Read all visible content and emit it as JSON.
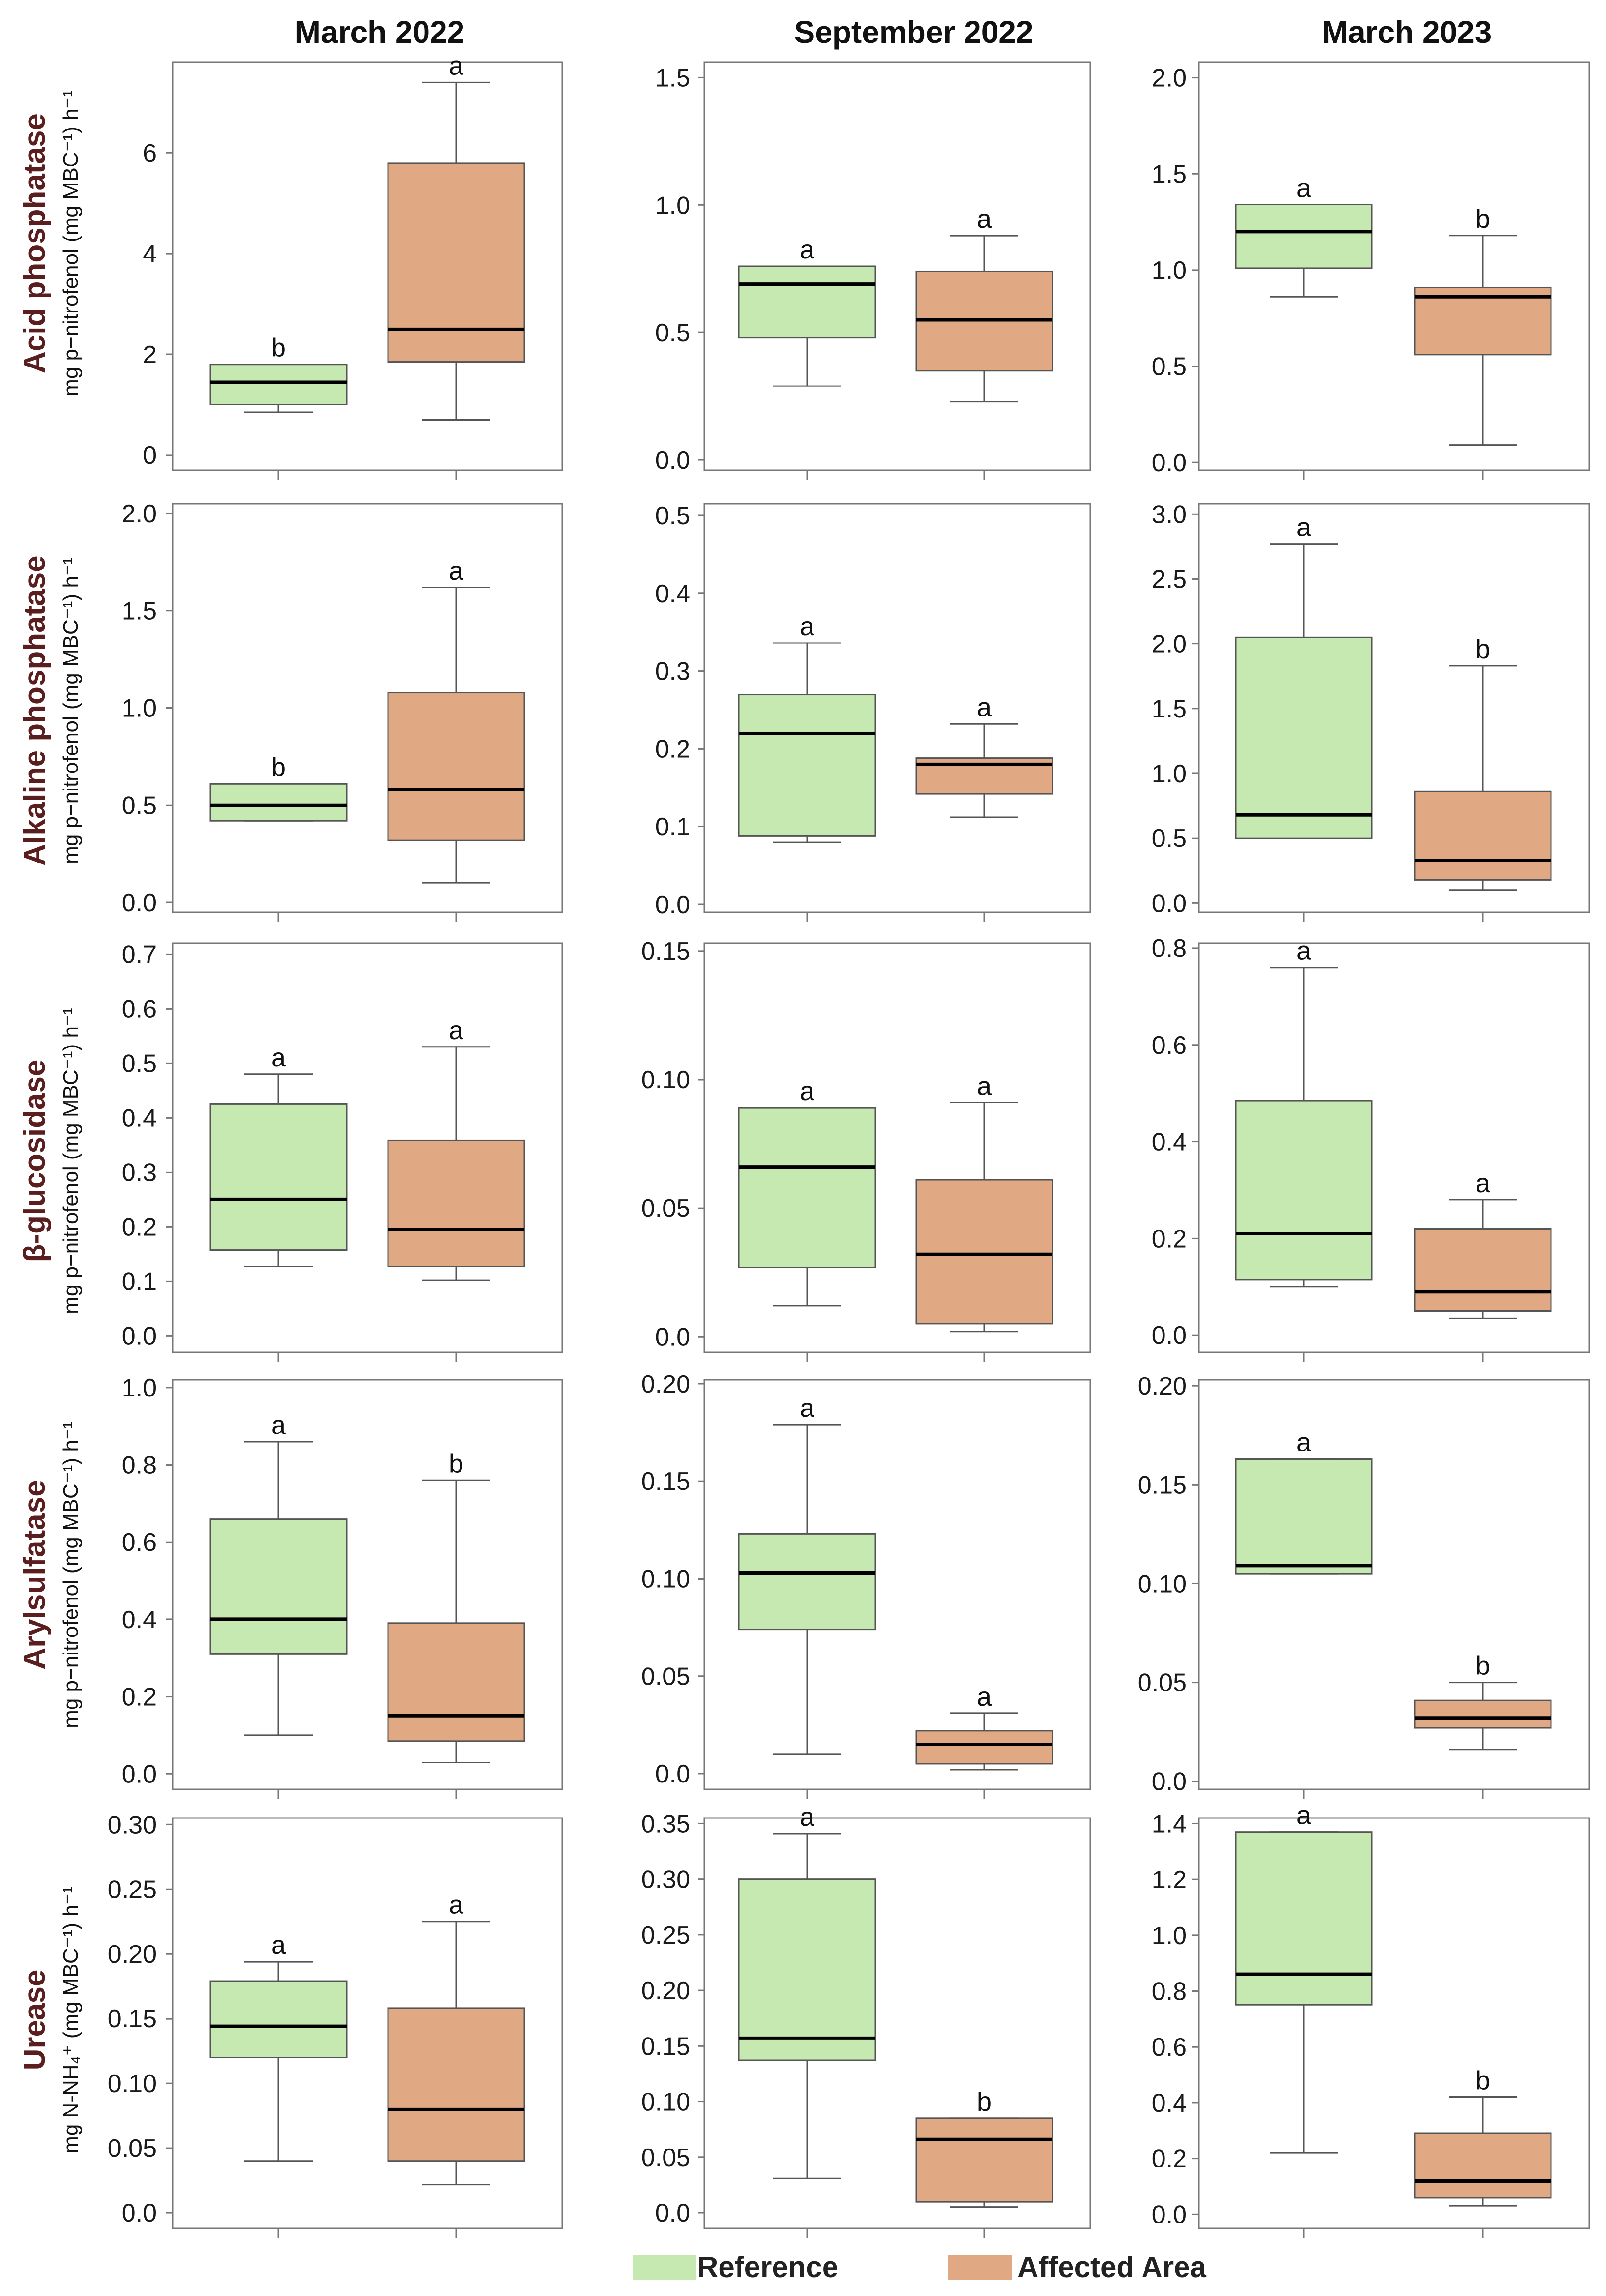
{
  "col_titles": [
    "March 2022",
    "September 2022",
    "March 2023"
  ],
  "rows": [
    {
      "title": "Acid phosphatase",
      "unit": "mg p−nitrofenol (mg MBC⁻¹) h⁻¹"
    },
    {
      "title": "Alkaline phosphatase",
      "unit": "mg p−nitrofenol (mg MBC⁻¹) h⁻¹"
    },
    {
      "title": "β-glucosidase",
      "unit": "mg p−nitrofenol (mg MBC⁻¹) h⁻¹"
    },
    {
      "title": "Arylsulfatase",
      "unit": "mg p−nitrofenol (mg MBC⁻¹) h⁻¹"
    },
    {
      "title": "Urease",
      "unit": "mg N-NH₄⁺ (mg MBC⁻¹) h⁻¹"
    }
  ],
  "legend": [
    {
      "label": "Reference",
      "color": "#c5e9b0"
    },
    {
      "label": "Affected Area",
      "color": "#e0a984"
    }
  ],
  "colors": {
    "reference": "#c5e9b0",
    "affected": "#e0a984",
    "median": "#000000"
  },
  "chart_data": [
    {
      "type": "box",
      "row": "Acid phosphatase",
      "column": "March 2022",
      "ylim": [
        -0.3,
        7.8
      ],
      "yticks": [
        "0",
        "2",
        "4",
        "6"
      ],
      "yticks_values": [
        0,
        2,
        4,
        6
      ],
      "series": [
        {
          "name": "Reference",
          "min": 0.85,
          "q1": 1.0,
          "median": 1.45,
          "q3": 1.8,
          "max": 1.8,
          "letter": "b"
        },
        {
          "name": "Affected Area",
          "min": 0.7,
          "q1": 1.85,
          "median": 2.5,
          "q3": 5.8,
          "max": 7.4,
          "letter": "a"
        }
      ]
    },
    {
      "type": "box",
      "row": "Acid phosphatase",
      "column": "September 2022",
      "ylim": [
        -0.04,
        1.56
      ],
      "yticks": [
        "0.0",
        "0.5",
        "1.0",
        "1.5"
      ],
      "yticks_values": [
        0,
        0.5,
        1.0,
        1.5
      ],
      "series": [
        {
          "name": "Reference",
          "min": 0.29,
          "q1": 0.48,
          "median": 0.69,
          "q3": 0.76,
          "max": 0.76,
          "letter": "a"
        },
        {
          "name": "Affected Area",
          "min": 0.23,
          "q1": 0.35,
          "median": 0.55,
          "q3": 0.74,
          "max": 0.88,
          "letter": "a"
        }
      ]
    },
    {
      "type": "box",
      "row": "Acid phosphatase",
      "column": "March 2023",
      "ylim": [
        -0.04,
        2.08
      ],
      "yticks": [
        "0.0",
        "0.5",
        "1.0",
        "1.5",
        "2.0"
      ],
      "yticks_values": [
        0,
        0.5,
        1.0,
        1.5,
        2.0
      ],
      "series": [
        {
          "name": "Reference",
          "min": 0.86,
          "q1": 1.01,
          "median": 1.2,
          "q3": 1.34,
          "max": 1.34,
          "letter": "a"
        },
        {
          "name": "Affected Area",
          "min": 0.09,
          "q1": 0.56,
          "median": 0.86,
          "q3": 0.91,
          "max": 1.18,
          "letter": "b"
        }
      ]
    },
    {
      "type": "box",
      "row": "Alkaline phosphatase",
      "column": "March 2022",
      "ylim": [
        -0.05,
        2.05
      ],
      "yticks": [
        "0.0",
        "0.5",
        "1.0",
        "1.5",
        "2.0"
      ],
      "yticks_values": [
        0,
        0.5,
        1.0,
        1.5,
        2.0
      ],
      "series": [
        {
          "name": "Reference",
          "min": 0.42,
          "q1": 0.42,
          "median": 0.5,
          "q3": 0.61,
          "max": 0.61,
          "letter": "b"
        },
        {
          "name": "Affected Area",
          "min": 0.1,
          "q1": 0.32,
          "median": 0.58,
          "q3": 1.08,
          "max": 1.62,
          "letter": "a"
        }
      ]
    },
    {
      "type": "box",
      "row": "Alkaline phosphatase",
      "column": "September 2022",
      "ylim": [
        -0.01,
        0.515
      ],
      "yticks": [
        "0.0",
        "0.1",
        "0.2",
        "0.3",
        "0.4",
        "0.5"
      ],
      "yticks_values": [
        0,
        0.1,
        0.2,
        0.3,
        0.4,
        0.5
      ],
      "series": [
        {
          "name": "Reference",
          "min": 0.08,
          "q1": 0.088,
          "median": 0.22,
          "q3": 0.27,
          "max": 0.336,
          "letter": "a"
        },
        {
          "name": "Affected Area",
          "min": 0.112,
          "q1": 0.142,
          "median": 0.18,
          "q3": 0.188,
          "max": 0.232,
          "letter": "a"
        }
      ]
    },
    {
      "type": "box",
      "row": "Alkaline phosphatase",
      "column": "March 2023",
      "ylim": [
        -0.07,
        3.08
      ],
      "yticks": [
        "0.0",
        "0.5",
        "1.0",
        "1.5",
        "2.0",
        "2.5",
        "3.0"
      ],
      "yticks_values": [
        0,
        0.5,
        1.0,
        1.5,
        2.0,
        2.5,
        3.0
      ],
      "series": [
        {
          "name": "Reference",
          "min": 0.5,
          "q1": 0.5,
          "median": 0.68,
          "q3": 2.05,
          "max": 2.77,
          "letter": "a"
        },
        {
          "name": "Affected Area",
          "min": 0.1,
          "q1": 0.18,
          "median": 0.33,
          "q3": 0.86,
          "max": 1.83,
          "letter": "b"
        }
      ]
    },
    {
      "type": "box",
      "row": "β-glucosidase",
      "column": "March 2022",
      "ylim": [
        -0.03,
        0.72
      ],
      "yticks": [
        "0.0",
        "0.1",
        "0.2",
        "0.3",
        "0.4",
        "0.5",
        "0.6",
        "0.7"
      ],
      "yticks_values": [
        0,
        0.1,
        0.2,
        0.3,
        0.4,
        0.5,
        0.6,
        0.7
      ],
      "series": [
        {
          "name": "Reference",
          "min": 0.127,
          "q1": 0.157,
          "median": 0.25,
          "q3": 0.425,
          "max": 0.48,
          "letter": "a"
        },
        {
          "name": "Affected Area",
          "min": 0.102,
          "q1": 0.127,
          "median": 0.195,
          "q3": 0.358,
          "max": 0.53,
          "letter": "a"
        }
      ]
    },
    {
      "type": "box",
      "row": "β-glucosidase",
      "column": "September 2022",
      "ylim": [
        -0.006,
        0.153
      ],
      "yticks": [
        "0.0",
        "0.05",
        "0.10",
        "0.15"
      ],
      "yticks_values": [
        0,
        0.05,
        0.1,
        0.15
      ],
      "series": [
        {
          "name": "Reference",
          "min": 0.012,
          "q1": 0.027,
          "median": 0.066,
          "q3": 0.089,
          "max": 0.089,
          "letter": "a"
        },
        {
          "name": "Affected Area",
          "min": 0.002,
          "q1": 0.005,
          "median": 0.032,
          "q3": 0.061,
          "max": 0.091,
          "letter": "a"
        }
      ]
    },
    {
      "type": "box",
      "row": "β-glucosidase",
      "column": "March 2023",
      "ylim": [
        -0.035,
        0.81
      ],
      "yticks": [
        "0.0",
        "0.2",
        "0.4",
        "0.6",
        "0.8"
      ],
      "yticks_values": [
        0,
        0.2,
        0.4,
        0.6,
        0.8
      ],
      "series": [
        {
          "name": "Reference",
          "min": 0.1,
          "q1": 0.115,
          "median": 0.21,
          "q3": 0.485,
          "max": 0.76,
          "letter": "a"
        },
        {
          "name": "Affected Area",
          "min": 0.035,
          "q1": 0.05,
          "median": 0.09,
          "q3": 0.22,
          "max": 0.28,
          "letter": "a"
        }
      ]
    },
    {
      "type": "box",
      "row": "Arylsulfatase",
      "column": "March 2022",
      "ylim": [
        -0.04,
        1.02
      ],
      "yticks": [
        "0.0",
        "0.2",
        "0.4",
        "0.6",
        "0.8",
        "1.0"
      ],
      "yticks_values": [
        0,
        0.2,
        0.4,
        0.6,
        0.8,
        1.0
      ],
      "series": [
        {
          "name": "Reference",
          "min": 0.1,
          "q1": 0.31,
          "median": 0.4,
          "q3": 0.66,
          "max": 0.86,
          "letter": "a"
        },
        {
          "name": "Affected Area",
          "min": 0.03,
          "q1": 0.085,
          "median": 0.15,
          "q3": 0.39,
          "max": 0.76,
          "letter": "b"
        }
      ]
    },
    {
      "type": "box",
      "row": "Arylsulfatase",
      "column": "September 2022",
      "ylim": [
        -0.008,
        0.202
      ],
      "yticks": [
        "0.0",
        "0.05",
        "0.10",
        "0.15",
        "0.20"
      ],
      "yticks_values": [
        0,
        0.05,
        0.1,
        0.15,
        0.2
      ],
      "series": [
        {
          "name": "Reference",
          "min": 0.01,
          "q1": 0.074,
          "median": 0.103,
          "q3": 0.123,
          "max": 0.179,
          "letter": "a"
        },
        {
          "name": "Affected Area",
          "min": 0.002,
          "q1": 0.005,
          "median": 0.015,
          "q3": 0.022,
          "max": 0.031,
          "letter": "a"
        }
      ]
    },
    {
      "type": "box",
      "row": "Arylsulfatase",
      "column": "March 2023",
      "ylim": [
        -0.004,
        0.203
      ],
      "yticks": [
        "0.0",
        "0.05",
        "0.10",
        "0.15",
        "0.20"
      ],
      "yticks_values": [
        0,
        0.05,
        0.1,
        0.15,
        0.2
      ],
      "series": [
        {
          "name": "Reference",
          "min": 0.105,
          "q1": 0.105,
          "median": 0.109,
          "q3": 0.163,
          "max": 0.163,
          "letter": "a"
        },
        {
          "name": "Affected Area",
          "min": 0.016,
          "q1": 0.027,
          "median": 0.032,
          "q3": 0.041,
          "max": 0.05,
          "letter": "b"
        }
      ]
    },
    {
      "type": "box",
      "row": "Urease",
      "column": "March 2022",
      "ylim": [
        -0.012,
        0.305
      ],
      "yticks": [
        "0.0",
        "0.05",
        "0.10",
        "0.15",
        "0.20",
        "0.25",
        "0.30"
      ],
      "yticks_values": [
        0,
        0.05,
        0.1,
        0.15,
        0.2,
        0.25,
        0.3
      ],
      "series": [
        {
          "name": "Reference",
          "min": 0.04,
          "q1": 0.12,
          "median": 0.144,
          "q3": 0.179,
          "max": 0.194,
          "letter": "a"
        },
        {
          "name": "Affected Area",
          "min": 0.022,
          "q1": 0.04,
          "median": 0.08,
          "q3": 0.158,
          "max": 0.225,
          "letter": "a"
        }
      ]
    },
    {
      "type": "box",
      "row": "Urease",
      "column": "September 2022",
      "ylim": [
        -0.014,
        0.355
      ],
      "yticks": [
        "0.0",
        "0.05",
        "0.10",
        "0.15",
        "0.20",
        "0.25",
        "0.30",
        "0.35"
      ],
      "yticks_values": [
        0,
        0.05,
        0.1,
        0.15,
        0.2,
        0.25,
        0.3,
        0.35
      ],
      "series": [
        {
          "name": "Reference",
          "min": 0.031,
          "q1": 0.137,
          "median": 0.157,
          "q3": 0.3,
          "max": 0.341,
          "letter": "a"
        },
        {
          "name": "Affected Area",
          "min": 0.005,
          "q1": 0.01,
          "median": 0.066,
          "q3": 0.085,
          "max": 0.085,
          "letter": "b"
        }
      ]
    },
    {
      "type": "box",
      "row": "Urease",
      "column": "March 2023",
      "ylim": [
        -0.05,
        1.42
      ],
      "yticks": [
        "0.0",
        "0.2",
        "0.4",
        "0.6",
        "0.8",
        "1.0",
        "1.2",
        "1.4"
      ],
      "yticks_values": [
        0,
        0.2,
        0.4,
        0.6,
        0.8,
        1.0,
        1.2,
        1.4
      ],
      "series": [
        {
          "name": "Reference",
          "min": 0.22,
          "q1": 0.75,
          "median": 0.86,
          "q3": 1.37,
          "max": 1.37,
          "letter": "a"
        },
        {
          "name": "Affected Area",
          "min": 0.03,
          "q1": 0.06,
          "median": 0.12,
          "q3": 0.29,
          "max": 0.42,
          "letter": "b"
        }
      ]
    }
  ]
}
